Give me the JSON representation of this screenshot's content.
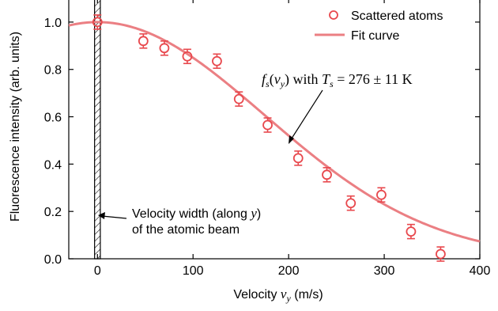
{
  "chart_data": {
    "type": "scatter",
    "xlabel": "Velocity",
    "xlabel_var": "v",
    "xlabel_var_sub": "y",
    "xlabel_unit": "(m/s)",
    "ylabel": "Fluorescence intensity (arb. units)",
    "xlim": [
      -30,
      400
    ],
    "ylim": [
      0.0,
      1.1
    ],
    "xticks": [
      0,
      100,
      200,
      300,
      400
    ],
    "yticks": [
      0.0,
      0.2,
      0.4,
      0.6,
      0.8,
      1.0
    ],
    "ytick_labels": [
      "0.0",
      "0.2",
      "0.4",
      "0.6",
      "0.8",
      "1.0"
    ],
    "series": [
      {
        "name": "Scattered atoms",
        "color": "#e8484d",
        "marker": "open-circle",
        "x": [
          0,
          48,
          70,
          94,
          125,
          148,
          178,
          210,
          240,
          265,
          297,
          328,
          359
        ],
        "y": [
          1.0,
          0.92,
          0.89,
          0.855,
          0.835,
          0.675,
          0.565,
          0.425,
          0.355,
          0.235,
          0.27,
          0.115,
          0.02
        ],
        "yerr": [
          0.03,
          0.03,
          0.03,
          0.03,
          0.03,
          0.03,
          0.03,
          0.03,
          0.03,
          0.03,
          0.03,
          0.03,
          0.03
        ]
      },
      {
        "name": "Fit curve",
        "color": "#eb7f83",
        "style": "line",
        "model": "gaussian",
        "center": 0,
        "amplitude": 1.0,
        "sigma": 175,
        "x": [
          -30,
          0,
          50,
          100,
          150,
          200,
          250,
          300,
          350,
          400
        ],
        "y": [
          0.985,
          1.0,
          0.96,
          0.849,
          0.693,
          0.521,
          0.361,
          0.23,
          0.135,
          0.074
        ]
      }
    ],
    "annotations": {
      "fit_label": {
        "f": "f",
        "f_sub": "s",
        "arg": "v",
        "arg_sub": "y",
        "text": " with ",
        "T": "T",
        "T_sub": "s",
        "value": " = 276 ± 11 K"
      },
      "velocity_width": {
        "line1_text": "Velocity width (along ",
        "line1_var": "y",
        "line1_end": ")",
        "line2": "of the atomic beam",
        "band_x": [
          -3,
          3
        ]
      }
    },
    "legend": {
      "placement": "top-right"
    },
    "grid": false
  }
}
